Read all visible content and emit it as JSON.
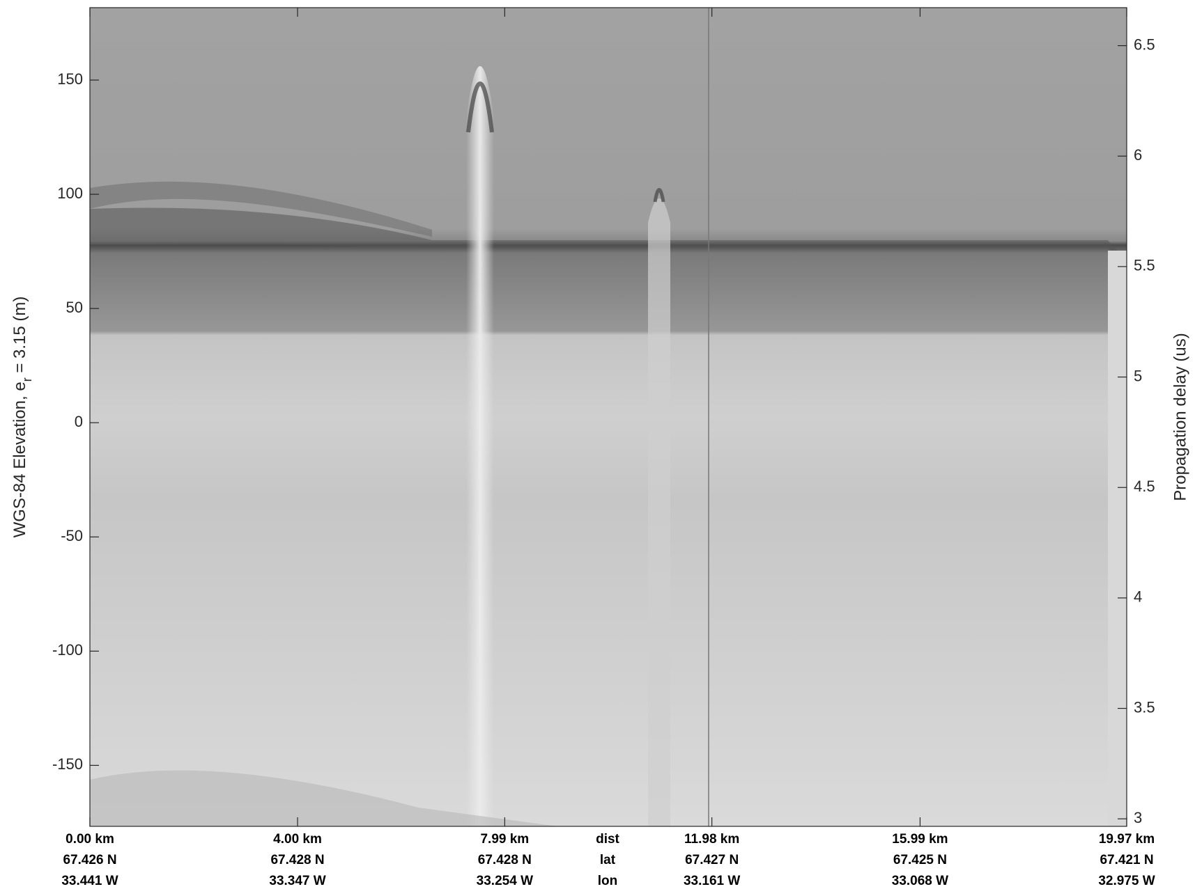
{
  "chart_data": {
    "type": "echogram",
    "ylabel": [
      "WGS-84 Elevation, e",
      "r",
      " = 3.15 (m)"
    ],
    "y2label": "Propagation delay (us)",
    "xlim": [
      0,
      19.97
    ],
    "xticks": [
      {
        "value": 0,
        "label": "0.00 km"
      },
      {
        "value": 4.0,
        "label": "4.00 km"
      },
      {
        "value": 7.99,
        "label": "7.99 km"
      },
      {
        "value": 11.98,
        "label": "11.98 km"
      },
      {
        "value": 15.99,
        "label": "15.99 km"
      },
      {
        "value": 19.97,
        "label": "19.97 km"
      }
    ],
    "x_lat_labels": [
      "67.426 N",
      "67.428 N",
      "67.428 N",
      "67.427 N",
      "67.425 N",
      "67.421 N"
    ],
    "x_lon_labels": [
      "33.441 W",
      "33.347 W",
      "33.254 W",
      "33.161 W",
      "33.068 W",
      "32.975 W"
    ],
    "row_labels": [
      "dist",
      "lat",
      "lon"
    ],
    "ylim": [
      -176.7,
      181.7
    ],
    "yticks": [
      -150,
      -100,
      -50,
      0,
      50,
      100,
      150
    ],
    "y2lim": [
      2.966,
      6.672
    ],
    "y2ticks": [
      3,
      3.5,
      4,
      4.5,
      5,
      5.5,
      6,
      6.5
    ]
  }
}
